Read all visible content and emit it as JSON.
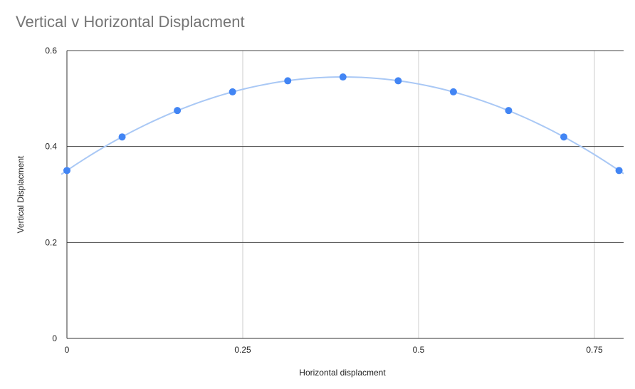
{
  "chart_data": {
    "type": "scatter",
    "title": "Vertical v Horizontal Displacment",
    "xlabel": "Horizontal displacment",
    "ylabel": "Vertical Displacment",
    "xlim": [
      0,
      0.79
    ],
    "ylim": [
      0,
      0.6
    ],
    "xticks": [
      "0",
      "0.25",
      "0.5",
      "0.75"
    ],
    "yticks": [
      "0",
      "0.2",
      "0.4",
      "0.6"
    ],
    "x": [
      0,
      0.0785,
      0.157,
      0.2355,
      0.314,
      0.3925,
      0.471,
      0.5495,
      0.628,
      0.7065,
      0.785
    ],
    "y": [
      0.35,
      0.42,
      0.475,
      0.514,
      0.537,
      0.545,
      0.537,
      0.514,
      0.475,
      0.42,
      0.35
    ],
    "trendline": "polynomial",
    "grid": true,
    "legend": "none",
    "colors": {
      "point": "#4285f4",
      "trendline": "#a9c8f5",
      "major_grid": "#444444",
      "minor_grid": "#cccccc",
      "title": "#757575"
    }
  }
}
